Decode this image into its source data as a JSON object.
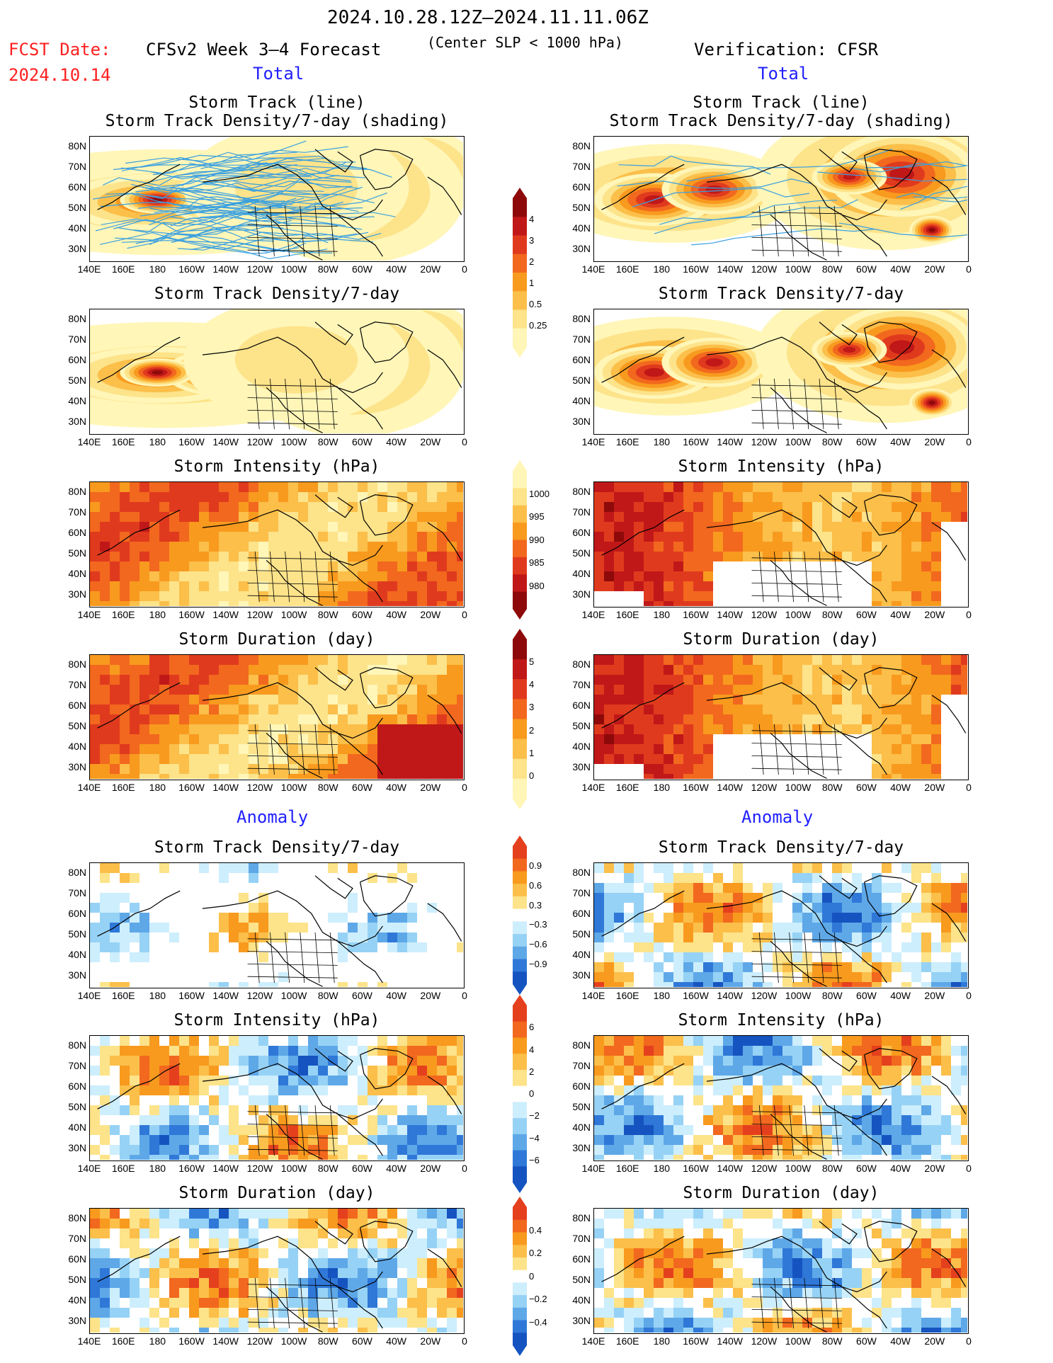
{
  "header": {
    "period": "2024.10.28.12Z–2024.11.11.06Z",
    "fcst_label": "FCST Date:",
    "fcst_date": "2024.10.14",
    "model": "CFSv2 Week 3–4 Forecast",
    "criterion": "(Center SLP < 1000 hPa)",
    "verification": "Verification: CFSR"
  },
  "sections": {
    "total": "Total",
    "anomaly": "Anomaly"
  },
  "panel_titles": {
    "track_line": "Storm Track (line)",
    "track_shading": "Storm Track Density/7-day (shading)",
    "density": "Storm Track Density/7-day",
    "intensity": "Storm Intensity (hPa)",
    "duration": "Storm Duration (day)"
  },
  "axes": {
    "lat_labels": [
      "80N",
      "70N",
      "60N",
      "50N",
      "40N",
      "30N"
    ],
    "lon_labels": [
      "140E",
      "160E",
      "180",
      "160W",
      "140W",
      "120W",
      "100W",
      "80W",
      "60W",
      "40W",
      "20W",
      "0"
    ]
  },
  "colorbars": {
    "density_total": [
      "4",
      "3",
      "2",
      "1",
      "0.5",
      "0.25"
    ],
    "intensity_total": [
      "1000",
      "995",
      "990",
      "985",
      "980"
    ],
    "duration_total": [
      "5",
      "4",
      "3",
      "2",
      "1",
      "0"
    ],
    "density_anom": [
      "0.9",
      "0.6",
      "0.3",
      "−0.3",
      "−0.6",
      "−0.9"
    ],
    "intensity_anom": [
      "6",
      "4",
      "2",
      "0",
      "−2",
      "−4",
      "−6"
    ],
    "duration_anom": [
      "0.4",
      "0.2",
      "0",
      "−0.2",
      "−0.4"
    ]
  },
  "colors": {
    "warm": [
      "#fff6b8",
      "#fde38a",
      "#fbbf4a",
      "#f89a1e",
      "#f2681e",
      "#e03a1e",
      "#c01818",
      "#8e0a0a"
    ],
    "anom_pos": [
      "#fde38a",
      "#fbbf4a",
      "#f89a1e",
      "#f2681e",
      "#e5401e"
    ],
    "anom_neg": [
      "#cdeefd",
      "#96d2f5",
      "#5ea8e8",
      "#2f78d8",
      "#1554c0"
    ],
    "track_line": "#3aa0e0",
    "title_blue": "#2020ff",
    "fcst_red": "#ff2020"
  }
}
